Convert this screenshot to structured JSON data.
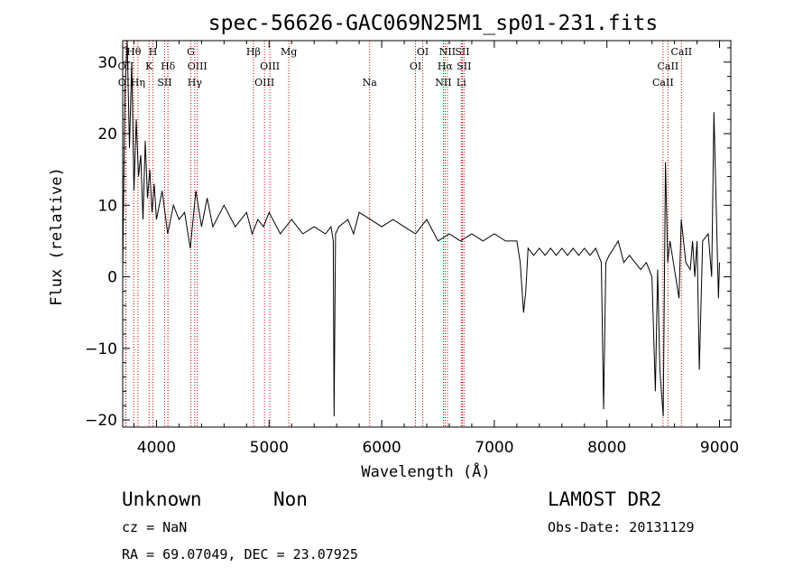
{
  "chart_data": {
    "type": "line",
    "title": "spec-56626-GAC069N25M1_sp01-231.fits",
    "xlabel": "Wavelength (Å)",
    "ylabel": "Flux (relative)",
    "xlim": [
      3700,
      9100
    ],
    "ylim": [
      -21,
      33
    ],
    "x_ticks": [
      4000,
      5000,
      6000,
      7000,
      8000,
      9000
    ],
    "y_ticks": [
      -20,
      -10,
      0,
      10,
      20,
      30
    ],
    "grid": false,
    "line_color": "#000000",
    "marker_color": "#cc0000",
    "series": [
      {
        "x": [
          3700,
          3720,
          3740,
          3760,
          3780,
          3800,
          3820,
          3840,
          3860,
          3880,
          3900,
          3920,
          3940,
          3960,
          3980,
          4000,
          4050,
          4100,
          4150,
          4200,
          4250,
          4300,
          4350,
          4400,
          4450,
          4500,
          4600,
          4700,
          4800,
          4850,
          4900,
          4950,
          5000,
          5100,
          5200,
          5300,
          5400,
          5500,
          5550,
          5570,
          5577,
          5590,
          5620,
          5700,
          5750,
          5800,
          5900,
          6000,
          6100,
          6200,
          6300,
          6400,
          6500,
          6600,
          6700,
          6800,
          6900,
          7000,
          7100,
          7200,
          7230,
          7260,
          7280,
          7300,
          7350,
          7400,
          7450,
          7500,
          7550,
          7600,
          7650,
          7700,
          7750,
          7800,
          7850,
          7900,
          7950,
          7970,
          7990,
          8020,
          8060,
          8100,
          8150,
          8200,
          8250,
          8300,
          8350,
          8400,
          8430,
          8450,
          8470,
          8500,
          8520,
          8540,
          8560,
          8600,
          8640,
          8660,
          8700,
          8740,
          8760,
          8780,
          8800,
          8820,
          8850,
          8900,
          8930,
          8950,
          8970,
          8990,
          9000
        ],
        "y": [
          1,
          26,
          35,
          18,
          30,
          12,
          22,
          14,
          17,
          8,
          19,
          11,
          15,
          9,
          13,
          8,
          12,
          6,
          10,
          8,
          9,
          4,
          12,
          7,
          11,
          7,
          10,
          7,
          9,
          6,
          8,
          7,
          9,
          6,
          8,
          6,
          7,
          6,
          7,
          5,
          -19.5,
          6,
          7,
          8,
          6,
          9,
          8,
          7,
          8,
          7,
          6,
          8,
          5,
          6,
          5,
          6,
          5,
          6,
          5,
          5,
          2,
          -5,
          -2,
          4,
          3,
          4,
          3,
          4,
          3,
          4,
          3,
          4,
          3,
          4,
          3,
          4,
          2,
          -18.5,
          2,
          3,
          4,
          5,
          2,
          3,
          2,
          1,
          2,
          0,
          -16,
          1,
          -13,
          -19.5,
          16,
          2,
          5,
          1,
          -3,
          8,
          2,
          1,
          5,
          0,
          5,
          -13,
          5,
          6,
          0,
          23,
          10,
          -3,
          2
        ]
      }
    ],
    "line_markers": [
      {
        "label": "Hθ",
        "x": 3798,
        "row": 0
      },
      {
        "label": "OII",
        "x": 3727,
        "row": 1
      },
      {
        "label": "OII",
        "x": 3729,
        "row": 2
      },
      {
        "label": "Hη",
        "x": 3835,
        "row": 2
      },
      {
        "label": "H",
        "x": 3969,
        "row": 0
      },
      {
        "label": "K",
        "x": 3934,
        "row": 1
      },
      {
        "label": "Hδ",
        "x": 4102,
        "row": 1
      },
      {
        "label": "SII",
        "x": 4072,
        "row": 2
      },
      {
        "label": "G",
        "x": 4305,
        "row": 0
      },
      {
        "label": "OIII",
        "x": 4363,
        "row": 1
      },
      {
        "label": "Hγ",
        "x": 4340,
        "row": 2
      },
      {
        "label": "Hβ",
        "x": 4861,
        "row": 0
      },
      {
        "label": "OIII",
        "x": 5007,
        "row": 1
      },
      {
        "label": "OIII",
        "x": 4959,
        "row": 2
      },
      {
        "label": "Mg",
        "x": 5175,
        "row": 0
      },
      {
        "label": "Na",
        "x": 5893,
        "row": 2
      },
      {
        "label": "OI",
        "x": 6364,
        "row": 0
      },
      {
        "label": "OI",
        "x": 6300,
        "row": 1
      },
      {
        "label": "NII",
        "x": 6584,
        "row": 0
      },
      {
        "label": "SII",
        "x": 6716,
        "row": 0
      },
      {
        "label": "Hα",
        "x": 6563,
        "row": 1
      },
      {
        "label": "SII",
        "x": 6731,
        "row": 1
      },
      {
        "label": "NII",
        "x": 6548,
        "row": 2
      },
      {
        "label": "Li",
        "x": 6707,
        "row": 2
      },
      {
        "label": "CaII",
        "x": 8662,
        "row": 0
      },
      {
        "label": "CaII",
        "x": 8542,
        "row": 1
      },
      {
        "label": "CaII",
        "x": 8498,
        "row": 2
      }
    ]
  },
  "footer": {
    "classification": "Unknown",
    "subclass": "Non",
    "survey": "LAMOST DR2",
    "cz": "cz = NaN",
    "obs_date": "Obs-Date: 20131129",
    "coords": "RA =  69.07049, DEC =  23.07925"
  }
}
